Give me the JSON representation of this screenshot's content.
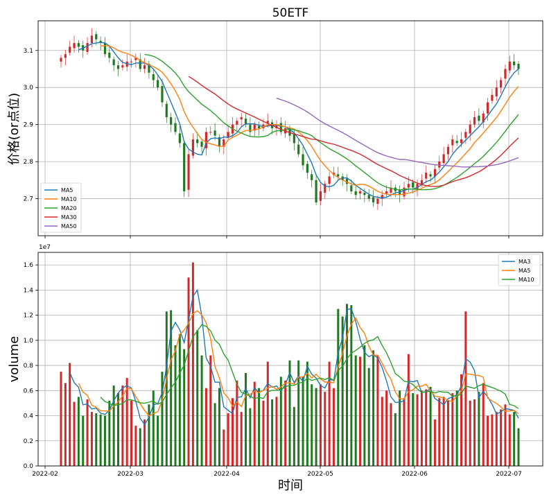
{
  "chart_data": [
    {
      "type": "candlestick",
      "title": "50ETF",
      "ylabel": "价格(or点位)",
      "xlabel": "",
      "ylim": [
        2.6,
        3.18
      ],
      "yticks": [
        "2.7",
        "2.8",
        "2.9",
        "3.0",
        "3.1"
      ],
      "legend": {
        "placement": "bottom-left",
        "entries": [
          "MA5",
          "MA10",
          "MA20",
          "MA30",
          "MA50"
        ]
      },
      "colors": {
        "up": "#d62728",
        "down": "#1f7a1f",
        "MA5": "#1f77b4",
        "MA10": "#ff7f0e",
        "MA20": "#2ca02c",
        "MA30": "#d62728",
        "MA50": "#9467bd"
      },
      "grid": true,
      "closes": [
        3.08,
        3.09,
        3.11,
        3.12,
        3.11,
        3.1,
        3.12,
        3.14,
        3.13,
        3.12,
        3.09,
        3.08,
        3.06,
        3.05,
        3.06,
        3.07,
        3.07,
        3.08,
        3.05,
        3.06,
        3.04,
        3.02,
        3.0,
        2.96,
        2.92,
        2.9,
        2.88,
        2.85,
        2.72,
        2.82,
        2.86,
        2.85,
        2.84,
        2.88,
        2.88,
        2.87,
        2.84,
        2.86,
        2.88,
        2.9,
        2.91,
        2.92,
        2.9,
        2.88,
        2.9,
        2.89,
        2.9,
        2.91,
        2.89,
        2.9,
        2.88,
        2.89,
        2.87,
        2.85,
        2.82,
        2.79,
        2.77,
        2.75,
        2.69,
        2.72,
        2.74,
        2.76,
        2.77,
        2.76,
        2.75,
        2.74,
        2.72,
        2.71,
        2.72,
        2.71,
        2.7,
        2.69,
        2.7,
        2.71,
        2.72,
        2.73,
        2.72,
        2.71,
        2.73,
        2.74,
        2.73,
        2.74,
        2.75,
        2.77,
        2.76,
        2.78,
        2.8,
        2.82,
        2.84,
        2.86,
        2.85,
        2.86,
        2.88,
        2.9,
        2.92,
        2.91,
        2.93,
        2.96,
        2.98,
        3.0,
        3.02,
        3.05,
        3.07,
        3.06,
        3.05
      ]
    },
    {
      "type": "bar",
      "title": "",
      "ylabel": "volume",
      "xlabel": "时间",
      "ylim": [
        0,
        1.7
      ],
      "scale_label": "1e7",
      "yticks": [
        "0.0",
        "0.2",
        "0.4",
        "0.6",
        "0.8",
        "1.0",
        "1.2",
        "1.4",
        "1.6"
      ],
      "xticks": [
        "2022-02",
        "2022-03",
        "2022-04",
        "2022-05",
        "2022-06",
        "2022-07"
      ],
      "legend": {
        "placement": "top-right",
        "entries": [
          "MA3",
          "MA5",
          "MA10"
        ]
      },
      "colors": {
        "MA3": "#1f77b4",
        "MA5": "#ff7f0e",
        "MA10": "#2ca02c"
      },
      "grid": true,
      "volumes": [
        0.75,
        0.66,
        0.82,
        0.51,
        0.55,
        0.4,
        0.53,
        0.43,
        0.42,
        0.41,
        0.4,
        0.52,
        0.64,
        0.58,
        0.64,
        0.7,
        0.52,
        0.32,
        0.3,
        0.37,
        0.49,
        0.6,
        0.4,
        0.75,
        1.23,
        1.24,
        0.96,
        1.05,
        0.93,
        1.5,
        1.62,
        1.08,
        0.88,
        0.62,
        0.88,
        0.5,
        0.62,
        0.29,
        0.42,
        0.54,
        0.68,
        0.43,
        0.74,
        0.46,
        0.67,
        0.62,
        0.52,
        0.83,
        0.53,
        0.55,
        0.71,
        0.68,
        0.84,
        0.47,
        0.84,
        0.71,
        0.83,
        0.65,
        0.62,
        0.65,
        0.59,
        0.83,
        0.62,
        1.25,
        1.19,
        1.29,
        1.28,
        0.88,
        0.87,
        0.96,
        0.78,
        0.92,
        0.88,
        0.55,
        0.6,
        0.5,
        0.42,
        0.6,
        0.54,
        0.89,
        0.58,
        0.57,
        0.6,
        0.61,
        0.63,
        0.37,
        0.54,
        0.55,
        0.52,
        0.58,
        0.6,
        0.73,
        1.23,
        0.52,
        0.53,
        0.59,
        0.66,
        0.4,
        0.41,
        0.43,
        0.45,
        0.49,
        0.41,
        0.43,
        0.3
      ]
    }
  ]
}
